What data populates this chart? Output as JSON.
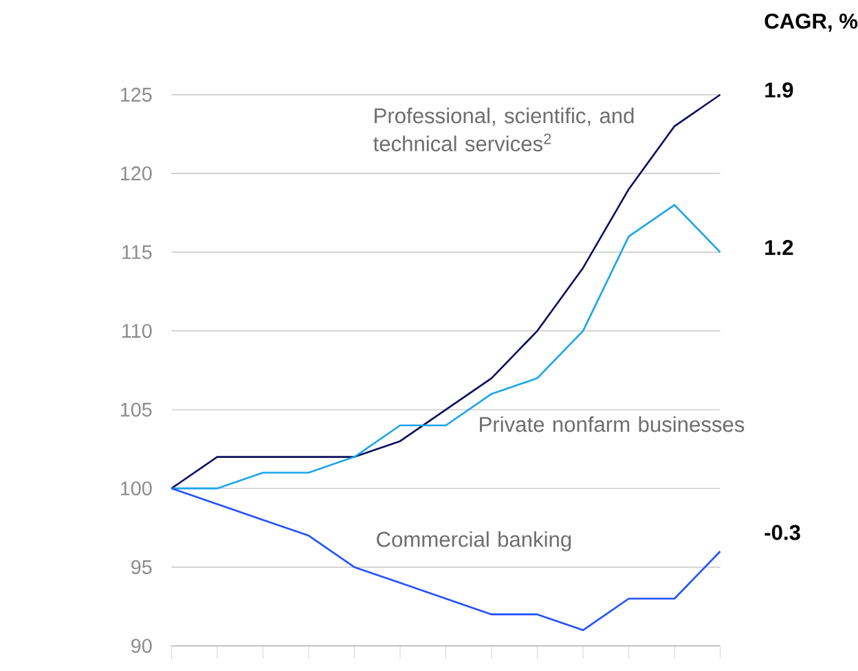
{
  "chart_data": {
    "type": "line",
    "categories": [
      null,
      null,
      null,
      null,
      null,
      null,
      null,
      null,
      null,
      null,
      null,
      null,
      null
    ],
    "series": [
      {
        "name": "Professional, scientific, and technical services$^{2}$",
        "color": "#0b0e5c",
        "values": [
          100,
          102,
          102,
          102,
          102,
          103,
          105,
          107,
          110,
          114,
          119,
          123,
          125
        ]
      },
      {
        "name": "Private nonfarm businesses",
        "color": "#1ba5e8",
        "values": [
          100,
          100,
          101,
          101,
          102,
          104,
          104,
          106,
          107,
          110,
          116,
          118,
          115
        ]
      },
      {
        "name": "Commercial banking",
        "color": "#2251ff",
        "values": [
          100,
          99,
          98,
          97,
          95,
          94,
          93,
          92,
          92,
          91,
          93,
          93,
          96
        ]
      }
    ],
    "ylim": [
      90,
      125
    ],
    "yticks": [
      90,
      95,
      100,
      105,
      110,
      115,
      120,
      125
    ],
    "grid": "y",
    "tick_labels": "y",
    "annotations": [
      "CAGR, %",
      "1.9",
      "1.2",
      "-0.3"
    ]
  }
}
